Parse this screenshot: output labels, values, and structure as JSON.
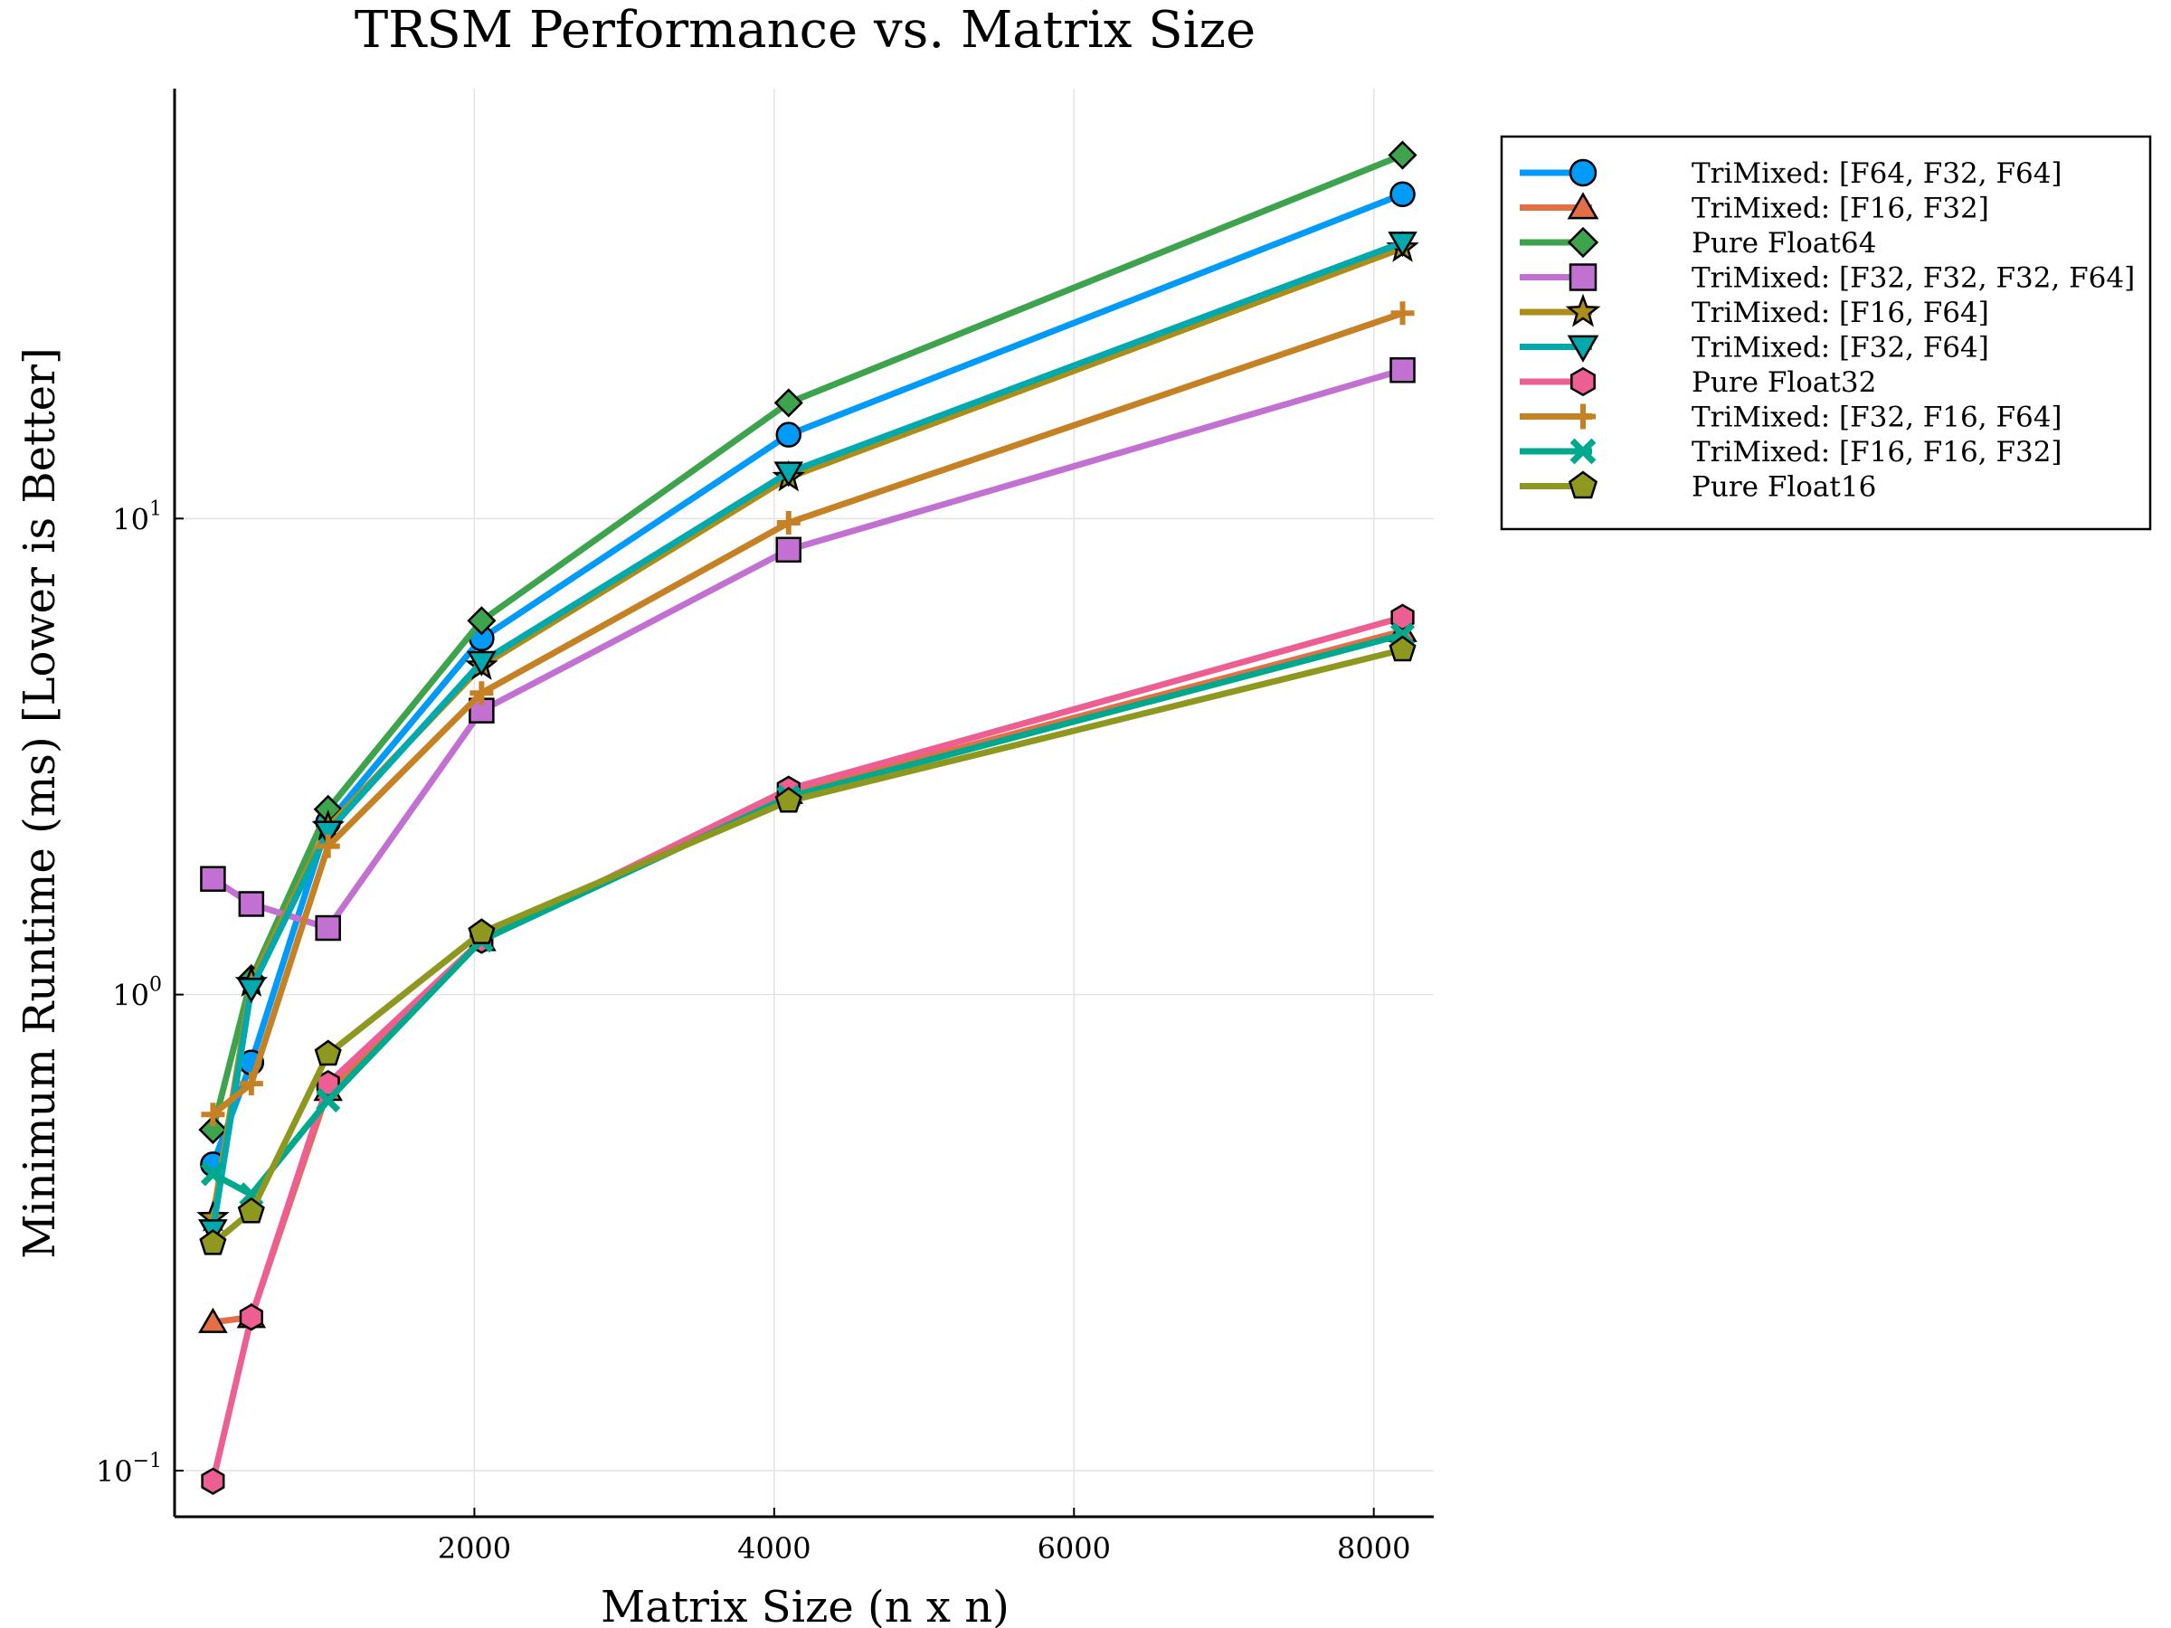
{
  "chart_data": {
    "type": "line",
    "title": "TRSM Performance vs. Matrix Size",
    "xlabel": "Matrix Size (n x n)",
    "ylabel": "Minimum Runtime (ms) [Lower is Better]",
    "yscale": "log10",
    "xlim": [
      0,
      8400
    ],
    "ylim": [
      0.08,
      80
    ],
    "x_ticks": [
      2000,
      4000,
      6000,
      8000
    ],
    "x_tick_labels": [
      "2000",
      "4000",
      "6000",
      "8000"
    ],
    "y_ticks": [
      0.1,
      1,
      10
    ],
    "y_tick_labels": [
      {
        "base": "10",
        "exp": "−1"
      },
      {
        "base": "10",
        "exp": "0"
      },
      {
        "base": "10",
        "exp": "1"
      }
    ],
    "grid": true,
    "legend_position": "outside-top-right",
    "x": [
      256,
      512,
      1024,
      2048,
      4096,
      8192
    ],
    "series": [
      {
        "name": "TriMixed: [F64, F32, F64]",
        "color": "#009af9",
        "marker": "circle",
        "values": [
          0.44,
          0.72,
          2.3,
          5.6,
          15.0,
          48.0
        ]
      },
      {
        "name": "TriMixed: [F16, F32]",
        "color": "#e26f46",
        "marker": "triangle-up",
        "values": [
          0.205,
          0.21,
          0.63,
          1.3,
          2.65,
          5.8
        ]
      },
      {
        "name": "Pure Float64",
        "color": "#3da44d",
        "marker": "diamond",
        "values": [
          0.52,
          1.08,
          2.45,
          6.1,
          17.5,
          58.0
        ]
      },
      {
        "name": "TriMixed: [F32, F32, F32, F64]",
        "color": "#c271d2",
        "marker": "square",
        "values": [
          1.75,
          1.55,
          1.38,
          3.95,
          8.6,
          20.5
        ]
      },
      {
        "name": "TriMixed: [F16, F64]",
        "color": "#ac8d18",
        "marker": "star",
        "values": [
          0.34,
          1.06,
          2.25,
          4.9,
          12.2,
          37.0
        ]
      },
      {
        "name": "TriMixed: [F32, F64]",
        "color": "#00a9ad",
        "marker": "triangle-down",
        "values": [
          0.32,
          1.03,
          2.2,
          5.0,
          12.5,
          38.0
        ]
      },
      {
        "name": "Pure Float32",
        "color": "#ed5e93",
        "marker": "hexagon",
        "values": [
          0.095,
          0.21,
          0.65,
          1.3,
          2.7,
          6.2
        ]
      },
      {
        "name": "TriMixed: [F32, F16, F64]",
        "color": "#c68125",
        "marker": "cross",
        "values": [
          0.56,
          0.65,
          2.05,
          4.3,
          9.8,
          27.0
        ]
      },
      {
        "name": "TriMixed: [F16, F16, F32]",
        "color": "#00a98d",
        "marker": "xcross",
        "values": [
          0.42,
          0.38,
          0.6,
          1.3,
          2.6,
          5.7
        ]
      },
      {
        "name": "Pure Float16",
        "color": "#8e971e",
        "marker": "pentagon",
        "values": [
          0.3,
          0.35,
          0.75,
          1.35,
          2.55,
          5.3
        ]
      }
    ]
  }
}
